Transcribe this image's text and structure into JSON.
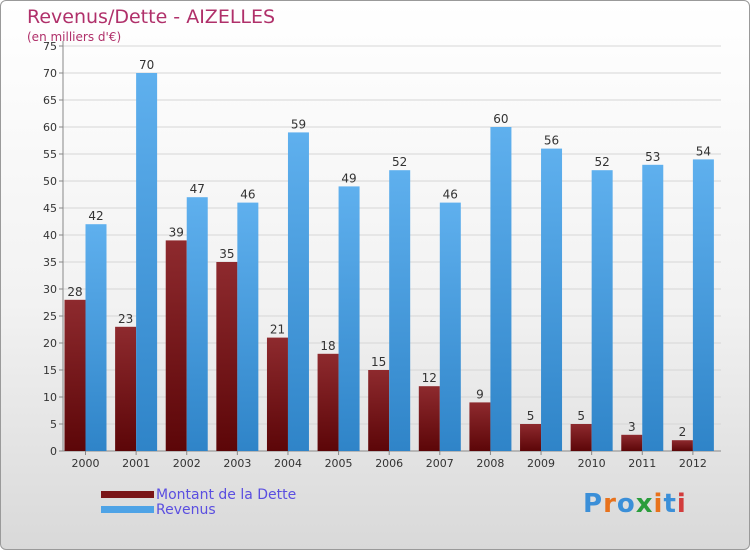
{
  "chart_data": {
    "type": "bar",
    "title": "Revenus/Dette - AIZELLES",
    "subtitle": "(en milliers d'€)",
    "categories": [
      "2000",
      "2001",
      "2002",
      "2003",
      "2004",
      "2005",
      "2006",
      "2007",
      "2008",
      "2009",
      "2010",
      "2011",
      "2012"
    ],
    "series": [
      {
        "name": "Montant de la Dette",
        "color": "#7a1518",
        "values": [
          28,
          23,
          39,
          35,
          21,
          18,
          15,
          12,
          9,
          5,
          5,
          3,
          2
        ]
      },
      {
        "name": "Revenus",
        "color": "#4ea3e6",
        "values": [
          42,
          70,
          47,
          46,
          59,
          49,
          52,
          46,
          60,
          56,
          52,
          53,
          54
        ]
      }
    ],
    "ylim": [
      0,
      75
    ],
    "yticks": [
      0,
      5,
      10,
      15,
      20,
      25,
      30,
      35,
      40,
      45,
      50,
      55,
      60,
      65,
      70,
      75
    ],
    "grid": true,
    "legend_position": "bottom-left"
  },
  "brand": {
    "logo_text": "Proxiti",
    "logo_colors": [
      "#3b8fd8",
      "#e8721c",
      "#3b8fd8",
      "#2a9d3c",
      "#e8721c",
      "#3b8fd8",
      "#d23c3c"
    ]
  }
}
